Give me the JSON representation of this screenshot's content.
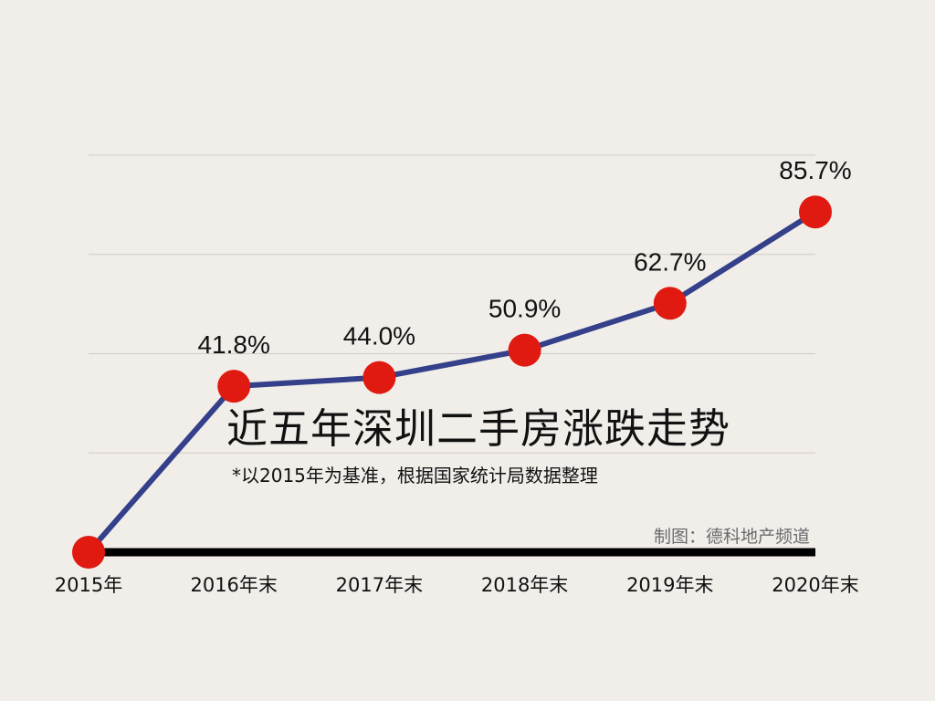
{
  "chart_data": {
    "type": "line",
    "title": "近五年深圳二手房涨跌走势",
    "subtitle": "*以2015年为基准，根据国家统计局数据整理",
    "categories": [
      "2015年",
      "2016年末",
      "2017年末",
      "2018年末",
      "2019年末",
      "2020年末"
    ],
    "values": [
      0,
      41.8,
      44.0,
      50.9,
      62.7,
      85.7
    ],
    "data_labels": [
      "",
      "41.8%",
      "44.0%",
      "50.9%",
      "62.7%",
      "85.7%"
    ],
    "ylim": [
      0,
      100
    ],
    "grid": true,
    "line_color": "#34408a",
    "marker_color": "#e01a10",
    "baseline_color": "#000000"
  },
  "credit": "制图：德科地产频道"
}
